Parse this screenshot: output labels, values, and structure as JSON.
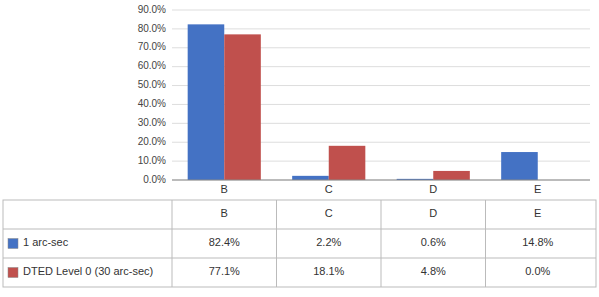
{
  "chart_data": {
    "type": "bar",
    "categories": [
      "B",
      "C",
      "D",
      "E"
    ],
    "series": [
      {
        "name": "1 arc-sec",
        "color": "#4472C4",
        "values": [
          82.4,
          2.2,
          0.6,
          14.8
        ],
        "value_labels": [
          "82.4%",
          "2.2%",
          "0.6%",
          "14.8%"
        ]
      },
      {
        "name": "DTED Level 0 (30 arc-sec)",
        "color": "#C0504D",
        "values": [
          77.1,
          18.1,
          4.8,
          0.0
        ],
        "value_labels": [
          "77.1%",
          "18.1%",
          "4.8%",
          "0.0%"
        ]
      }
    ],
    "ylim": [
      0,
      90
    ],
    "yticks": [
      {
        "value": 0,
        "label": "0.0%"
      },
      {
        "value": 10,
        "label": "10.0%"
      },
      {
        "value": 20,
        "label": "20.0%"
      },
      {
        "value": 30,
        "label": "30.0%"
      },
      {
        "value": 40,
        "label": "40.0%"
      },
      {
        "value": 50,
        "label": "50.0%"
      },
      {
        "value": 60,
        "label": "60.0%"
      },
      {
        "value": 70,
        "label": "70.0%"
      },
      {
        "value": 80,
        "label": "80.0%"
      },
      {
        "value": 90,
        "label": "90.0%"
      }
    ],
    "grid": true
  }
}
